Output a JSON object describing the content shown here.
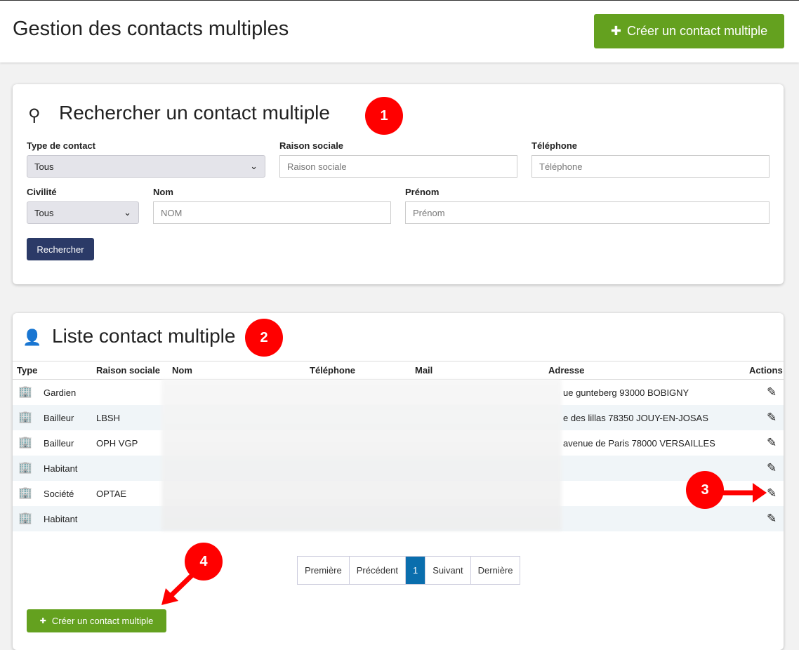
{
  "header": {
    "title": "Gestion des contacts multiples",
    "create_button": "Créer un contact multiple"
  },
  "search": {
    "title": "Rechercher un contact multiple",
    "type_label": "Type de contact",
    "type_value": "Tous",
    "raison_label": "Raison sociale",
    "raison_placeholder": "Raison sociale",
    "tel_label": "Téléphone",
    "tel_placeholder": "Téléphone",
    "civ_label": "Civilité",
    "civ_value": "Tous",
    "nom_label": "Nom",
    "nom_placeholder": "NOM",
    "prenom_label": "Prénom",
    "prenom_placeholder": "Prénom",
    "search_button": "Rechercher"
  },
  "list": {
    "title": "Liste contact multiple",
    "columns": [
      "Type",
      "Raison sociale",
      "Nom",
      "Téléphone",
      "Mail",
      "Adresse",
      "Actions"
    ],
    "rows": [
      {
        "type": "Gardien",
        "raison": "",
        "adresse": "ue gunteberg 93000 BOBIGNY"
      },
      {
        "type": "Bailleur",
        "raison": "LBSH",
        "adresse": "e des lillas 78350 JOUY-EN-JOSAS"
      },
      {
        "type": "Bailleur",
        "raison": "OPH VGP",
        "adresse": "avenue de Paris 78000 VERSAILLES"
      },
      {
        "type": "Habitant",
        "raison": "",
        "adresse": ""
      },
      {
        "type": "Société",
        "raison": "OPTAE",
        "adresse": ""
      },
      {
        "type": "Habitant",
        "raison": "",
        "adresse": ""
      }
    ],
    "pagination": [
      "Première",
      "Précédent",
      "1",
      "Suivant",
      "Dernière"
    ],
    "create_button": "Créer un contact multiple"
  },
  "annotations": [
    "1",
    "2",
    "3",
    "4"
  ],
  "colors": {
    "green": "#64a11f",
    "navy": "#2b3a67",
    "active_page": "#0a6ead",
    "annotation": "#ff0000"
  }
}
